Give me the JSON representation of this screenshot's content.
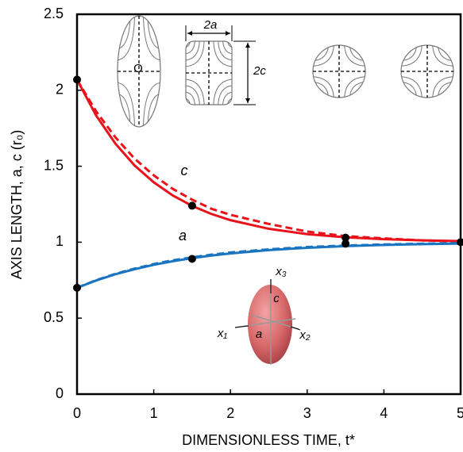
{
  "chart_data": {
    "type": "line",
    "xlabel": "DIMENSIONLESS TIME, t*",
    "ylabel": "AXIS LENGTH,  a, c (r₀)",
    "x": [
      0,
      0.25,
      0.5,
      0.75,
      1,
      1.25,
      1.5,
      1.75,
      2,
      2.5,
      3,
      3.5,
      4,
      4.5,
      5
    ],
    "series": [
      {
        "color": "#e8131b",
        "dashed": false,
        "values": [
          2.07,
          1.833,
          1.649,
          1.505,
          1.394,
          1.307,
          1.239,
          1.186,
          1.145,
          1.088,
          1.053,
          1.032,
          1.02,
          1.012,
          1.007
        ]
      },
      {
        "color": "#e8131b",
        "dashed": true,
        "values": [
          2.07,
          1.86,
          1.69,
          1.55,
          1.44,
          1.35,
          1.28,
          1.22,
          1.18,
          1.12,
          1.07,
          1.04,
          1.025,
          1.012,
          1.005
        ]
      },
      {
        "color": "#1a74c0",
        "dashed": false,
        "values": [
          0.7,
          0.748,
          0.789,
          0.822,
          0.851,
          0.875,
          0.895,
          0.912,
          0.926,
          0.948,
          0.963,
          0.974,
          0.982,
          0.987,
          0.991
        ]
      },
      {
        "color": "#1a74c0",
        "dashed": true,
        "values": [
          0.7,
          0.75,
          0.792,
          0.826,
          0.856,
          0.881,
          0.9,
          0.918,
          0.932,
          0.953,
          0.968,
          0.978,
          0.985,
          0.99,
          0.994
        ]
      }
    ],
    "points": {
      "color": "#000000",
      "x": [
        0,
        1.5,
        3.5,
        5,
        0,
        1.5,
        3.5
      ],
      "y": [
        2.07,
        1.24,
        1.03,
        1.0,
        0.7,
        0.89,
        0.99
      ]
    },
    "curve_labels": [
      "c",
      "a"
    ],
    "inset_labels": [
      "O",
      "2a",
      "2c",
      "x₃",
      "c",
      "a",
      "x₁",
      "x₂"
    ],
    "xlim": [
      0,
      5
    ],
    "xticks": [
      0,
      1,
      2,
      3,
      4,
      5
    ],
    "ylim": [
      0,
      2.5
    ],
    "yticks": [
      0,
      0.5,
      1,
      1.5,
      2,
      2.5
    ]
  }
}
